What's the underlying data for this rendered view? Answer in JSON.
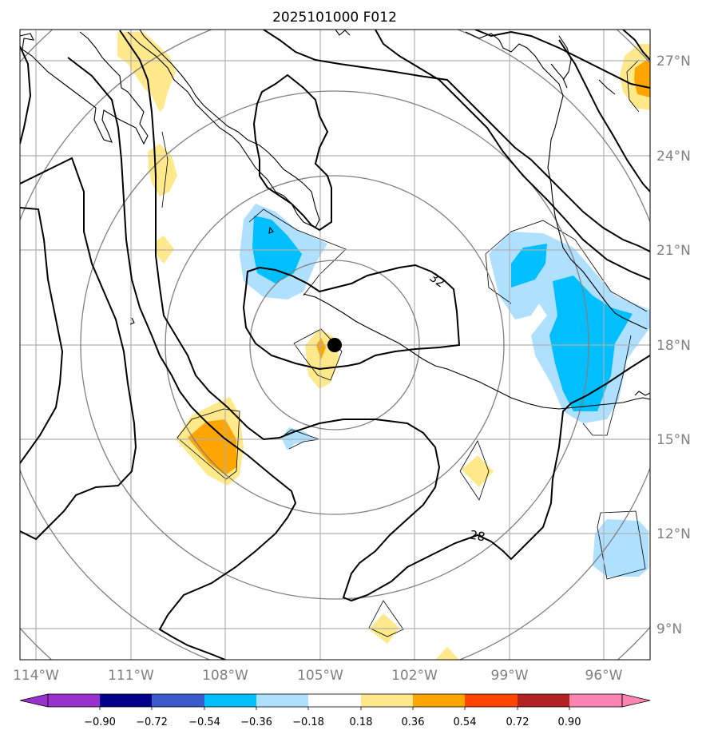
{
  "title": "2025101000 F012",
  "colors": {
    "dark_purple": "#9932cc",
    "navy": "#00008b",
    "royal_blue": "#3a5acc",
    "deep_sky": "#00bfff",
    "light_blue": "#b0e0ff",
    "white": "#ffffff",
    "light_yellow": "#ffe98a",
    "orange": "#ffa500",
    "orange_red": "#ff4500",
    "firebrick": "#b22222",
    "pink": "#ff85b0"
  },
  "lon_labels": [
    "114°W",
    "111°W",
    "108°W",
    "105°W",
    "102°W",
    "99°W",
    "96°W"
  ],
  "lat_labels": [
    "27°N",
    "24°N",
    "21°N",
    "18°N",
    "15°N",
    "12°N",
    "9°N"
  ],
  "contour_labels": [
    "32",
    "28"
  ],
  "colorbar": {
    "ticks": [
      "−0.90",
      "−0.72",
      "−0.54",
      "−0.36",
      "−0.18",
      "0.18",
      "0.36",
      "0.54",
      "0.72",
      "0.90"
    ],
    "colors": [
      "#00008b",
      "#3a5acc",
      "#00bfff",
      "#b0e0ff",
      "#ffffff",
      "#ffe98a",
      "#ffa500",
      "#ff4500",
      "#b22222"
    ],
    "under_color": "#9932cc",
    "over_color": "#ff85b0"
  },
  "storm_center": {
    "lon": -104.6,
    "lat": 18.0
  }
}
